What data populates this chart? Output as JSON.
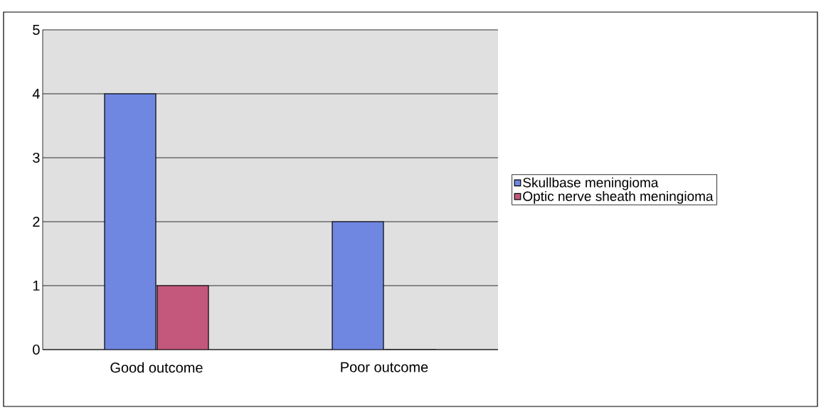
{
  "chart_data": {
    "type": "bar",
    "categories": [
      "Good outcome",
      "Poor outcome"
    ],
    "series": [
      {
        "name": "Skullbase meningioma",
        "color": "#6f87e0",
        "values": [
          4,
          2
        ]
      },
      {
        "name": "Optic nerve sheath meningioma",
        "color": "#c4587c",
        "values": [
          1,
          0
        ]
      }
    ],
    "ylim": [
      0,
      5
    ],
    "yticks": [
      0,
      1,
      2,
      3,
      4,
      5
    ],
    "grid": "y",
    "legend": "right"
  }
}
